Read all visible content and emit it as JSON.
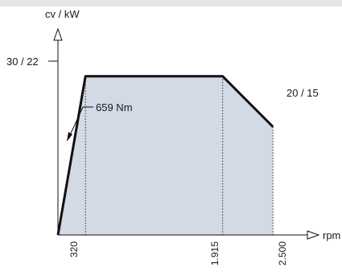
{
  "chart_data": {
    "type": "area",
    "ylabel": "cv / kW",
    "xlabel": "rpm",
    "x_ticks": [
      "320",
      "1.915",
      "2.500"
    ],
    "y_ticks": [
      "30 / 22"
    ],
    "end_label": "20 / 15",
    "annotation": "659 Nm",
    "points": [
      {
        "x": 0,
        "y": 0
      },
      {
        "x": 320,
        "y": 22
      },
      {
        "x": 1915,
        "y": 22
      },
      {
        "x": 2500,
        "y": 15
      }
    ],
    "xlim": [
      0,
      2900
    ],
    "ylim": [
      0,
      27
    ],
    "fill_color": "#d3d9e5",
    "line_color": "#111111",
    "grid": false
  }
}
